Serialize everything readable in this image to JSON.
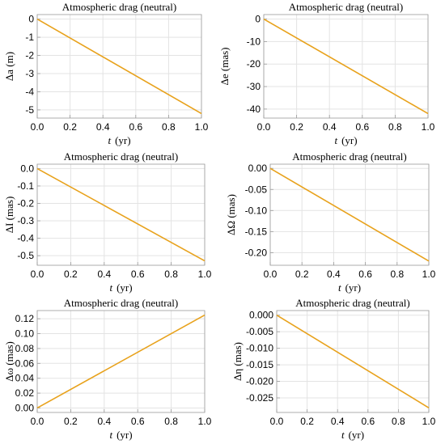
{
  "chart_data": [
    {
      "type": "line",
      "title": "Atmospheric drag (neutral)",
      "xlabel_var": "t",
      "xlabel_unit": "(yr)",
      "ylabel": "Δa (m)",
      "x": [
        0.0,
        1.0
      ],
      "series": [
        {
          "values": [
            0.0,
            -5.2
          ]
        }
      ],
      "xlim": [
        0.0,
        1.0
      ],
      "ylim": [
        -5.45,
        0.25
      ],
      "xticks": [
        "0.0",
        "0.2",
        "0.4",
        "0.6",
        "0.8",
        "1.0"
      ],
      "yticks": [
        "0",
        "-1",
        "-2",
        "-3",
        "-4",
        "-5"
      ],
      "grid": true
    },
    {
      "type": "line",
      "title": "Atmospheric drag (neutral)",
      "xlabel_var": "t",
      "xlabel_unit": "(yr)",
      "ylabel": "Δe (mas)",
      "x": [
        0.0,
        1.0
      ],
      "series": [
        {
          "values": [
            0.0,
            -42.0
          ]
        }
      ],
      "xlim": [
        0.0,
        1.0
      ],
      "ylim": [
        -44.0,
        2.0
      ],
      "xticks": [
        "0.0",
        "0.2",
        "0.4",
        "0.6",
        "0.8",
        "1.0"
      ],
      "yticks": [
        "0",
        "-10",
        "-20",
        "-30",
        "-40"
      ],
      "grid": true
    },
    {
      "type": "line",
      "title": "Atmospheric drag (neutral)",
      "xlabel_var": "t",
      "xlabel_unit": "(yr)",
      "ylabel": "ΔI (mas)",
      "x": [
        0.0,
        1.0
      ],
      "series": [
        {
          "values": [
            0.0,
            -0.53
          ]
        }
      ],
      "xlim": [
        0.0,
        1.0
      ],
      "ylim": [
        -0.555,
        0.025
      ],
      "xticks": [
        "0.0",
        "0.2",
        "0.4",
        "0.6",
        "0.8",
        "1.0"
      ],
      "yticks": [
        "0.0",
        "-0.1",
        "-0.2",
        "-0.3",
        "-0.4",
        "-0.5"
      ],
      "grid": true
    },
    {
      "type": "line",
      "title": "Atmospheric drag (neutral)",
      "xlabel_var": "t",
      "xlabel_unit": "(yr)",
      "ylabel": "ΔΩ (mas)",
      "x": [
        0.0,
        1.0
      ],
      "series": [
        {
          "values": [
            0.0,
            -0.22
          ]
        }
      ],
      "xlim": [
        0.0,
        1.0
      ],
      "ylim": [
        -0.23,
        0.01
      ],
      "xticks": [
        "0.0",
        "0.2",
        "0.4",
        "0.6",
        "0.8",
        "1.0"
      ],
      "yticks": [
        "0.00",
        "-0.05",
        "-0.10",
        "-0.15",
        "-0.20"
      ],
      "grid": true
    },
    {
      "type": "line",
      "title": "Atmospheric drag (neutral)",
      "xlabel_var": "t",
      "xlabel_unit": "(yr)",
      "ylabel": "Δω (mas)",
      "x": [
        0.0,
        1.0
      ],
      "series": [
        {
          "values": [
            0.0,
            0.125
          ]
        }
      ],
      "xlim": [
        0.0,
        1.0
      ],
      "ylim": [
        -0.006,
        0.131
      ],
      "xticks": [
        "0.0",
        "0.2",
        "0.4",
        "0.6",
        "0.8",
        "1.0"
      ],
      "yticks": [
        "0.00",
        "0.02",
        "0.04",
        "0.06",
        "0.08",
        "0.10",
        "0.12"
      ],
      "grid": true
    },
    {
      "type": "line",
      "title": "Atmospheric drag (neutral)",
      "xlabel_var": "t",
      "xlabel_unit": "(yr)",
      "ylabel": "Δη (mas)",
      "x": [
        0.0,
        1.0
      ],
      "series": [
        {
          "values": [
            0.0,
            -0.028
          ]
        }
      ],
      "xlim": [
        0.0,
        1.0
      ],
      "ylim": [
        -0.0294,
        0.0014
      ],
      "xticks": [
        "0.0",
        "0.2",
        "0.4",
        "0.6",
        "0.8",
        "1.0"
      ],
      "yticks": [
        "0.000",
        "-0.005",
        "-0.010",
        "-0.015",
        "-0.020",
        "-0.025"
      ],
      "grid": true
    }
  ],
  "style": {
    "line_color": "#e8a21c"
  }
}
